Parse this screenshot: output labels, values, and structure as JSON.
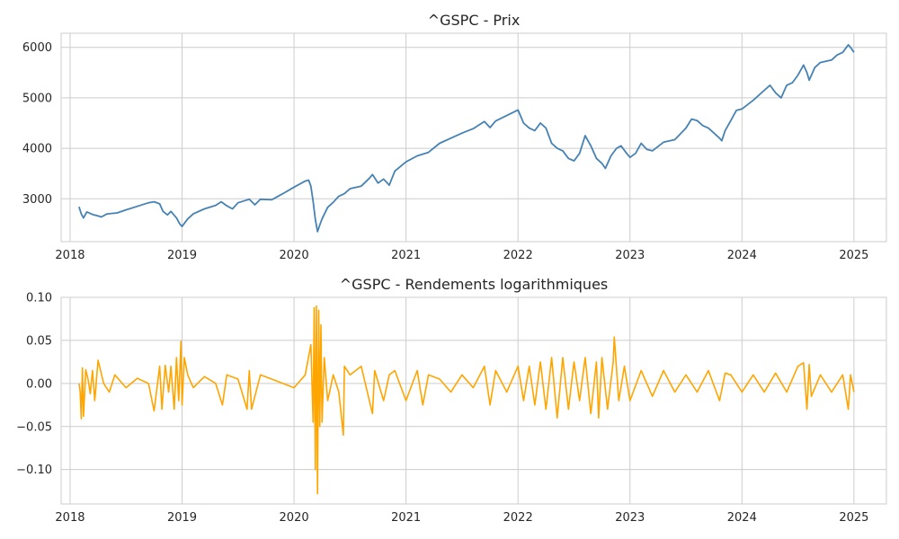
{
  "chart_data": [
    {
      "type": "line",
      "title": "^GSPC - Prix",
      "xlabel": "",
      "ylabel": "",
      "xlim": [
        2017.92,
        2025.29
      ],
      "ylim": [
        2150,
        6280
      ],
      "x_ticks": [
        2018,
        2019,
        2020,
        2021,
        2022,
        2023,
        2024,
        2025
      ],
      "x_tick_labels": [
        "2018",
        "2019",
        "2020",
        "2021",
        "2022",
        "2023",
        "2024",
        "2025"
      ],
      "y_ticks": [
        3000,
        4000,
        5000,
        6000
      ],
      "y_tick_labels": [
        "3000",
        "4000",
        "5000",
        "6000"
      ],
      "grid": true,
      "legend": "none",
      "color": "#4682b4",
      "series": [
        {
          "x": [
            2018.08,
            2018.1,
            2018.12,
            2018.15,
            2018.2,
            2018.25,
            2018.28,
            2018.33,
            2018.42,
            2018.5,
            2018.6,
            2018.7,
            2018.75,
            2018.8,
            2018.83,
            2018.87,
            2018.9,
            2018.95,
            2018.98,
            2019.0,
            2019.05,
            2019.1,
            2019.2,
            2019.3,
            2019.35,
            2019.4,
            2019.45,
            2019.5,
            2019.6,
            2019.65,
            2019.7,
            2019.8,
            2019.9,
            2020.0,
            2020.1,
            2020.13,
            2020.15,
            2020.17,
            2020.19,
            2020.21,
            2020.23,
            2020.25,
            2020.3,
            2020.35,
            2020.4,
            2020.45,
            2020.5,
            2020.6,
            2020.67,
            2020.7,
            2020.75,
            2020.8,
            2020.85,
            2020.9,
            2021.0,
            2021.1,
            2021.2,
            2021.3,
            2021.4,
            2021.5,
            2021.6,
            2021.7,
            2021.75,
            2021.8,
            2021.9,
            2022.0,
            2022.05,
            2022.1,
            2022.15,
            2022.2,
            2022.25,
            2022.3,
            2022.35,
            2022.4,
            2022.45,
            2022.5,
            2022.55,
            2022.6,
            2022.65,
            2022.7,
            2022.75,
            2022.78,
            2022.83,
            2022.88,
            2022.92,
            2022.97,
            2023.0,
            2023.05,
            2023.1,
            2023.15,
            2023.2,
            2023.3,
            2023.4,
            2023.5,
            2023.55,
            2023.6,
            2023.65,
            2023.7,
            2023.75,
            2023.8,
            2023.82,
            2023.85,
            2023.9,
            2023.95,
            2024.0,
            2024.1,
            2024.2,
            2024.25,
            2024.3,
            2024.35,
            2024.4,
            2024.45,
            2024.5,
            2024.55,
            2024.58,
            2024.6,
            2024.65,
            2024.7,
            2024.8,
            2024.85,
            2024.9,
            2024.95,
            2024.97,
            2025.0
          ],
          "y": [
            2840,
            2700,
            2620,
            2740,
            2690,
            2660,
            2640,
            2700,
            2720,
            2780,
            2850,
            2920,
            2940,
            2900,
            2750,
            2680,
            2750,
            2620,
            2500,
            2450,
            2600,
            2700,
            2800,
            2870,
            2940,
            2860,
            2800,
            2920,
            2990,
            2880,
            2990,
            2980,
            3100,
            3230,
            3350,
            3370,
            3250,
            2950,
            2600,
            2350,
            2480,
            2600,
            2830,
            2930,
            3050,
            3100,
            3200,
            3250,
            3400,
            3480,
            3310,
            3390,
            3270,
            3550,
            3730,
            3850,
            3920,
            4100,
            4200,
            4300,
            4390,
            4530,
            4410,
            4540,
            4650,
            4760,
            4500,
            4400,
            4350,
            4500,
            4400,
            4100,
            4000,
            3950,
            3800,
            3750,
            3900,
            4250,
            4050,
            3800,
            3700,
            3600,
            3850,
            4000,
            4050,
            3900,
            3820,
            3900,
            4100,
            3980,
            3950,
            4120,
            4170,
            4400,
            4580,
            4550,
            4450,
            4400,
            4300,
            4200,
            4150,
            4350,
            4550,
            4750,
            4780,
            4950,
            5150,
            5250,
            5100,
            5000,
            5250,
            5300,
            5450,
            5650,
            5500,
            5350,
            5600,
            5700,
            5750,
            5850,
            5900,
            6050,
            6000,
            5900
          ]
        }
      ]
    },
    {
      "type": "line",
      "title": "^GSPC - Rendements logarithmiques",
      "xlabel": "",
      "ylabel": "",
      "xlim": [
        2017.92,
        2025.29
      ],
      "ylim": [
        -0.14,
        0.1
      ],
      "x_ticks": [
        2018,
        2019,
        2020,
        2021,
        2022,
        2023,
        2024,
        2025
      ],
      "x_tick_labels": [
        "2018",
        "2019",
        "2020",
        "2021",
        "2022",
        "2023",
        "2024",
        "2025"
      ],
      "y_ticks": [
        -0.1,
        -0.05,
        0.0,
        0.05,
        0.1
      ],
      "y_tick_labels": [
        "−0.10",
        "−0.05",
        "0.00",
        "0.05",
        "0.10"
      ],
      "grid": true,
      "legend": "none",
      "color": "#ffa500",
      "series": [
        {
          "x": [
            2018.08,
            2018.09,
            2018.1,
            2018.11,
            2018.12,
            2018.14,
            2018.16,
            2018.18,
            2018.2,
            2018.22,
            2018.25,
            2018.3,
            2018.35,
            2018.4,
            2018.5,
            2018.6,
            2018.7,
            2018.75,
            2018.8,
            2018.82,
            2018.85,
            2018.88,
            2018.9,
            2018.93,
            2018.95,
            2018.97,
            2018.99,
            2019.0,
            2019.02,
            2019.05,
            2019.1,
            2019.2,
            2019.3,
            2019.36,
            2019.4,
            2019.5,
            2019.58,
            2019.6,
            2019.62,
            2019.7,
            2019.8,
            2019.9,
            2020.0,
            2020.1,
            2020.15,
            2020.17,
            2020.18,
            2020.19,
            2020.2,
            2020.21,
            2020.22,
            2020.23,
            2020.24,
            2020.25,
            2020.27,
            2020.3,
            2020.35,
            2020.4,
            2020.44,
            2020.45,
            2020.5,
            2020.6,
            2020.7,
            2020.72,
            2020.8,
            2020.85,
            2020.9,
            2021.0,
            2021.1,
            2021.15,
            2021.2,
            2021.3,
            2021.4,
            2021.5,
            2021.6,
            2021.7,
            2021.75,
            2021.8,
            2021.9,
            2022.0,
            2022.05,
            2022.1,
            2022.15,
            2022.2,
            2022.25,
            2022.3,
            2022.35,
            2022.4,
            2022.45,
            2022.5,
            2022.55,
            2022.6,
            2022.65,
            2022.7,
            2022.72,
            2022.75,
            2022.8,
            2022.85,
            2022.86,
            2022.9,
            2022.95,
            2023.0,
            2023.1,
            2023.2,
            2023.3,
            2023.4,
            2023.5,
            2023.6,
            2023.7,
            2023.8,
            2023.85,
            2023.9,
            2024.0,
            2024.1,
            2024.2,
            2024.3,
            2024.4,
            2024.5,
            2024.55,
            2024.58,
            2024.6,
            2024.62,
            2024.7,
            2024.8,
            2024.9,
            2024.95,
            2024.97,
            2025.0
          ],
          "y": [
            0.0,
            -0.01,
            -0.041,
            0.018,
            -0.038,
            0.016,
            0.005,
            -0.012,
            0.015,
            -0.02,
            0.027,
            0.0,
            -0.01,
            0.01,
            -0.005,
            0.006,
            0.0,
            -0.032,
            0.02,
            -0.03,
            0.021,
            -0.01,
            0.02,
            -0.03,
            0.03,
            -0.02,
            0.049,
            -0.025,
            0.03,
            0.01,
            -0.005,
            0.008,
            0.0,
            -0.025,
            0.01,
            0.005,
            -0.03,
            0.015,
            -0.03,
            0.01,
            0.005,
            0.0,
            -0.005,
            0.01,
            0.045,
            -0.045,
            0.088,
            -0.1,
            0.09,
            -0.128,
            0.085,
            -0.05,
            0.068,
            -0.045,
            0.03,
            -0.02,
            0.01,
            -0.01,
            -0.06,
            0.02,
            0.01,
            0.02,
            -0.035,
            0.015,
            -0.02,
            0.01,
            0.015,
            -0.02,
            0.015,
            -0.025,
            0.01,
            0.005,
            -0.01,
            0.01,
            -0.005,
            0.02,
            -0.025,
            0.015,
            -0.01,
            0.02,
            -0.02,
            0.02,
            -0.025,
            0.025,
            -0.03,
            0.03,
            -0.04,
            0.03,
            -0.03,
            0.025,
            -0.02,
            0.03,
            -0.035,
            0.025,
            -0.04,
            0.03,
            -0.03,
            0.025,
            0.054,
            -0.02,
            0.02,
            -0.02,
            0.015,
            -0.015,
            0.015,
            -0.01,
            0.01,
            -0.01,
            0.015,
            -0.02,
            0.012,
            0.01,
            -0.01,
            0.01,
            -0.01,
            0.012,
            -0.01,
            0.02,
            0.024,
            -0.03,
            0.022,
            -0.015,
            0.01,
            -0.01,
            0.01,
            -0.03,
            0.01,
            -0.01
          ]
        }
      ]
    }
  ]
}
